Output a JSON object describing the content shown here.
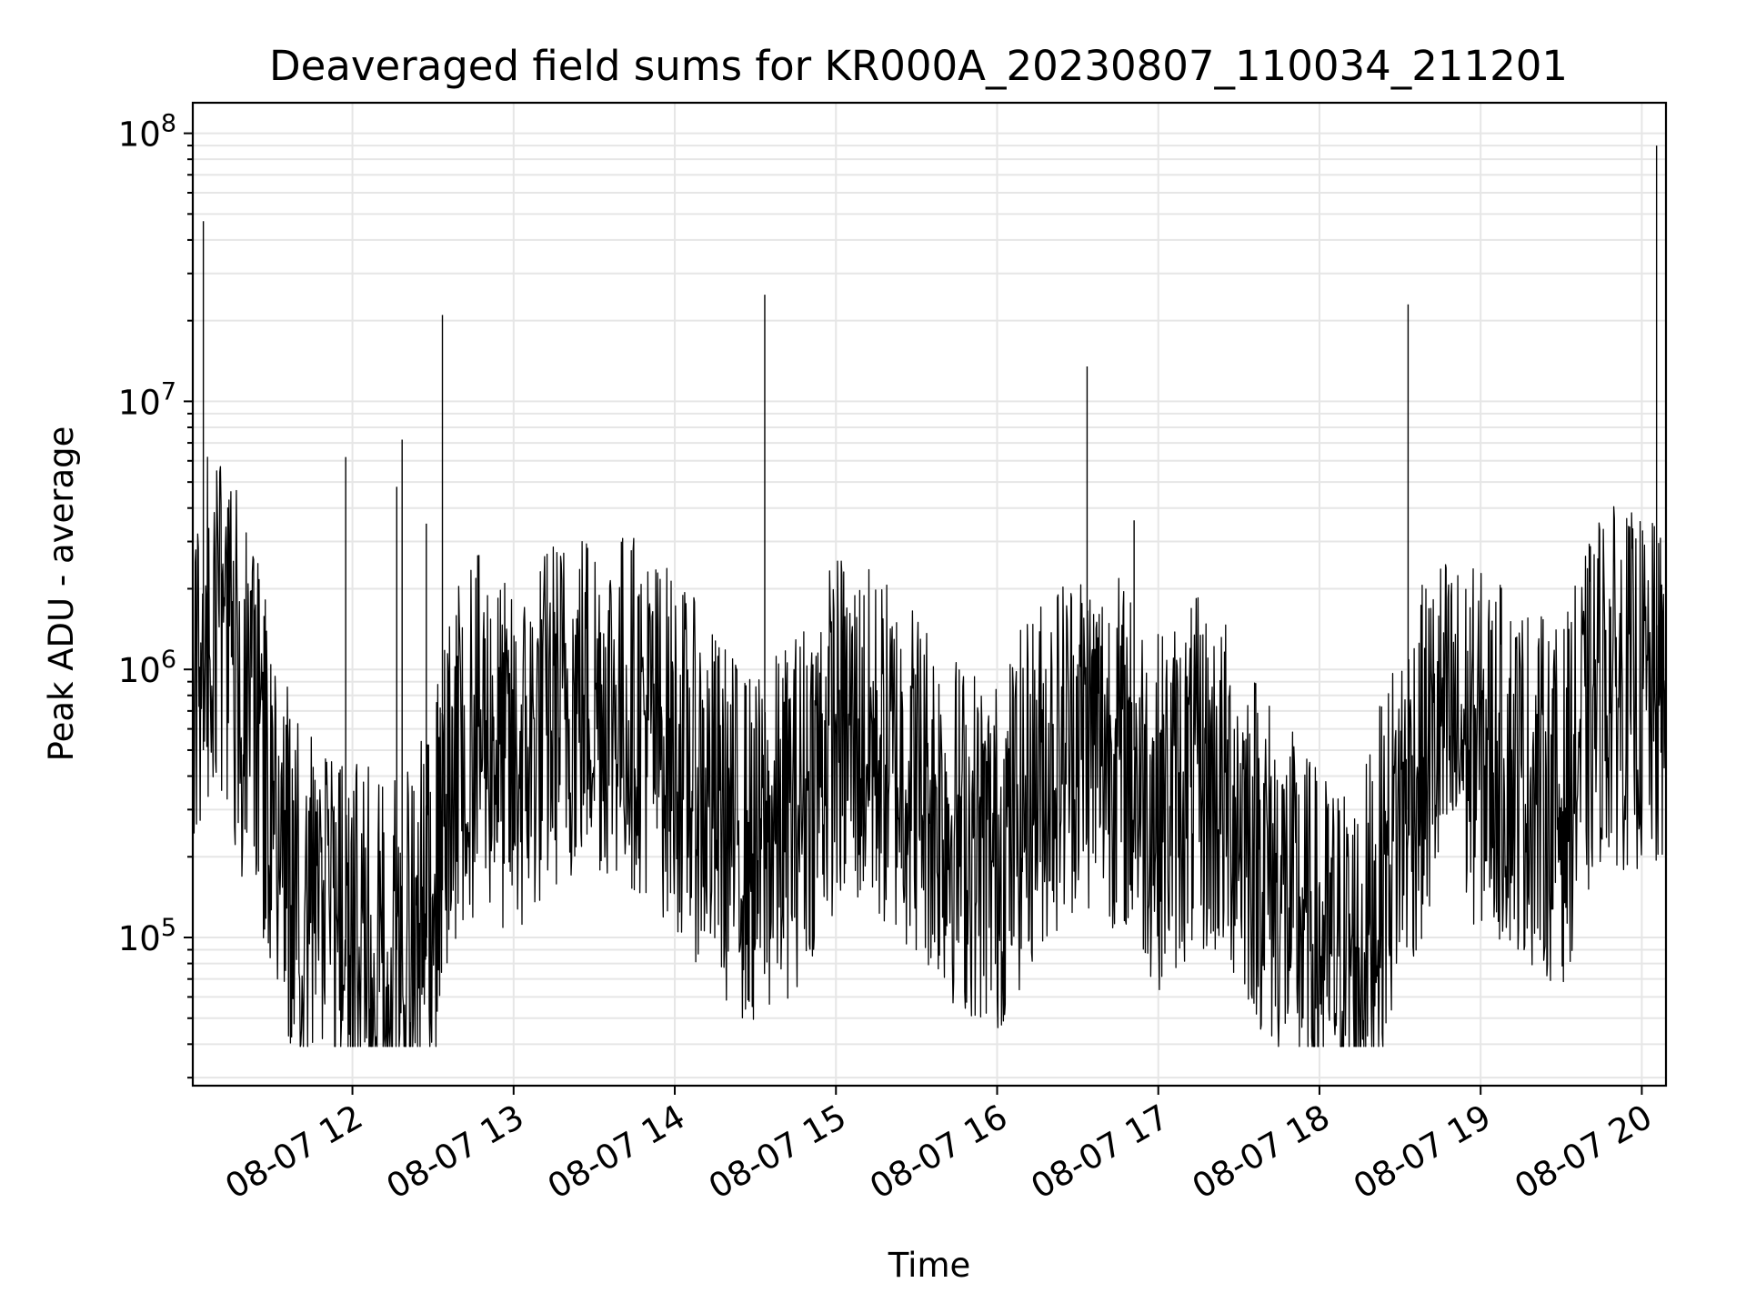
{
  "chart_data": {
    "type": "line",
    "title": "Deaveraged field sums for KR000A_20230807_110034_211201",
    "xlabel": "Time",
    "ylabel": "Peak ADU - average",
    "yscale": "log",
    "ylim": [
      28000,
      130000000
    ],
    "xlim": [
      "2023-08-07 11:00:34",
      "2023-08-07 20:09:00"
    ],
    "grid": true,
    "line_color": "#000000",
    "grid_color": "#e6e6e6",
    "x_ticks": [
      {
        "t": "2023-08-07 12:00",
        "label": "08-07 12"
      },
      {
        "t": "2023-08-07 13:00",
        "label": "08-07 13"
      },
      {
        "t": "2023-08-07 14:00",
        "label": "08-07 14"
      },
      {
        "t": "2023-08-07 15:00",
        "label": "08-07 15"
      },
      {
        "t": "2023-08-07 16:00",
        "label": "08-07 16"
      },
      {
        "t": "2023-08-07 17:00",
        "label": "08-07 17"
      },
      {
        "t": "2023-08-07 18:00",
        "label": "08-07 18"
      },
      {
        "t": "2023-08-07 19:00",
        "label": "08-07 19"
      },
      {
        "t": "2023-08-07 20:00",
        "label": "08-07 20"
      }
    ],
    "y_ticks": [
      {
        "value": 100000,
        "base": "10",
        "exp": "5"
      },
      {
        "value": 1000000,
        "base": "10",
        "exp": "6"
      },
      {
        "value": 10000000,
        "base": "10",
        "exp": "7"
      },
      {
        "value": 100000000,
        "base": "10",
        "exp": "8"
      }
    ],
    "series": [
      {
        "x": [
          "2023-08-07 11:00",
          "2023-08-07 11:05",
          "2023-08-07 11:10",
          "2023-08-07 11:15",
          "2023-08-07 11:20",
          "2023-08-07 11:25",
          "2023-08-07 11:30",
          "2023-08-07 11:35",
          "2023-08-07 11:40",
          "2023-08-07 11:45",
          "2023-08-07 11:50",
          "2023-08-07 11:55",
          "2023-08-07 12:00",
          "2023-08-07 12:10",
          "2023-08-07 12:20",
          "2023-08-07 12:30",
          "2023-08-07 12:40",
          "2023-08-07 12:50",
          "2023-08-07 13:00",
          "2023-08-07 13:15",
          "2023-08-07 13:30",
          "2023-08-07 13:45",
          "2023-08-07 14:00",
          "2023-08-07 14:15",
          "2023-08-07 14:30",
          "2023-08-07 14:45",
          "2023-08-07 15:00",
          "2023-08-07 15:15",
          "2023-08-07 15:30",
          "2023-08-07 15:45",
          "2023-08-07 16:00",
          "2023-08-07 16:15",
          "2023-08-07 16:30",
          "2023-08-07 16:45",
          "2023-08-07 17:00",
          "2023-08-07 17:15",
          "2023-08-07 17:30",
          "2023-08-07 17:45",
          "2023-08-07 18:00",
          "2023-08-07 18:15",
          "2023-08-07 18:30",
          "2023-08-07 18:45",
          "2023-08-07 19:00",
          "2023-08-07 19:15",
          "2023-08-07 19:30",
          "2023-08-07 19:45",
          "2023-08-07 20:00",
          "2023-08-07 20:09"
        ],
        "y": [
          500000,
          1400000,
          1500000,
          1200000,
          700000,
          600000,
          300000,
          200000,
          150000,
          120000,
          110000,
          100000,
          95000,
          90000,
          85000,
          150000,
          500000,
          600000,
          400000,
          700000,
          800000,
          700000,
          500000,
          300000,
          200000,
          300000,
          600000,
          500000,
          400000,
          250000,
          200000,
          400000,
          600000,
          500000,
          300000,
          400000,
          300000,
          150000,
          90000,
          80000,
          300000,
          600000,
          500000,
          400000,
          300000,
          900000,
          800000,
          700000
        ]
      }
    ],
    "spikes": [
      {
        "t": "2023-08-07 11:04:30",
        "value": 47000000
      },
      {
        "t": "2023-08-07 11:57:30",
        "value": 6200000
      },
      {
        "t": "2023-08-07 12:16:30",
        "value": 4800000
      },
      {
        "t": "2023-08-07 12:18:30",
        "value": 7200000
      },
      {
        "t": "2023-08-07 12:27:30",
        "value": 3500000
      },
      {
        "t": "2023-08-07 12:33:30",
        "value": 21000000
      },
      {
        "t": "2023-08-07 14:33:30",
        "value": 25000000
      },
      {
        "t": "2023-08-07 16:33:30",
        "value": 13500000
      },
      {
        "t": "2023-08-07 16:51:00",
        "value": 3600000
      },
      {
        "t": "2023-08-07 18:33:00",
        "value": 23000000
      },
      {
        "t": "2023-08-07 20:05:30",
        "value": 90000000
      }
    ]
  }
}
